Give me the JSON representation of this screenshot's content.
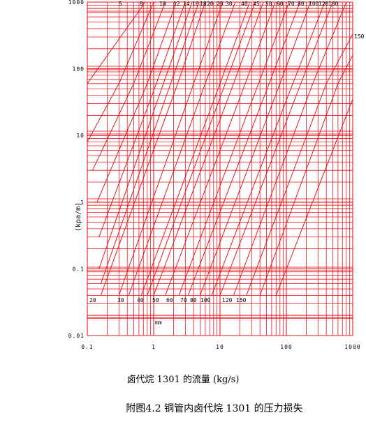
{
  "chart_data": {
    "type": "line",
    "xscale": "log",
    "yscale": "log",
    "xlim": [
      0.1,
      1000
    ],
    "ylim": [
      0.01,
      1000
    ],
    "grid": true,
    "ylabel": "(kpa/m)",
    "xlabel": "卤代烷 1301 的流量 (kg/s)",
    "caption": "附图4.2  铜管内卤代烷 1301 的压力损失",
    "unit_label": "mm",
    "x_ticks": [
      "0.1",
      "1",
      "10",
      "100",
      "1000"
    ],
    "y_ticks": [
      "1000",
      "100",
      "10",
      "1",
      "0.1",
      "0.01"
    ],
    "diameter_labels_top": [
      "5",
      "8",
      "10",
      "12",
      "14",
      "16",
      "18",
      "20",
      "25",
      "30",
      "40",
      "45",
      "50",
      "60",
      "70",
      "80",
      "100",
      "120",
      "130",
      "150"
    ],
    "diameter_labels_bottom": [
      "20",
      "30",
      "40",
      "50",
      "60",
      "70",
      "80",
      "100",
      "120",
      "150"
    ],
    "line_color": "#e8161d",
    "series": [
      {
        "d": 5,
        "points": [
          [
            0.1,
            60
          ],
          [
            0.75,
            1000
          ]
        ]
      },
      {
        "d": 8,
        "points": [
          [
            0.1,
            8
          ],
          [
            0.3,
            60
          ],
          [
            1.0,
            1000
          ]
        ]
      },
      {
        "d": 10,
        "points": [
          [
            0.12,
            3
          ],
          [
            0.5,
            60
          ],
          [
            1.5,
            1000
          ]
        ]
      },
      {
        "d": 12,
        "points": [
          [
            0.14,
            1
          ],
          [
            0.8,
            60
          ],
          [
            2.2,
            1000
          ]
        ]
      },
      {
        "d": 14,
        "points": [
          [
            0.15,
            0.3
          ],
          [
            1.1,
            60
          ],
          [
            3.0,
            1000
          ]
        ]
      },
      {
        "d": 16,
        "points": [
          [
            0.15,
            0.1
          ],
          [
            1.4,
            60
          ],
          [
            3.8,
            1000
          ]
        ]
      },
      {
        "d": 18,
        "points": [
          [
            0.16,
            0.06
          ],
          [
            1.8,
            60
          ],
          [
            4.8,
            1000
          ]
        ]
      },
      {
        "d": 20,
        "points": [
          [
            0.16,
            0.04
          ],
          [
            2.3,
            60
          ],
          [
            6.0,
            1000
          ]
        ]
      },
      {
        "d": 25,
        "points": [
          [
            0.3,
            0.04
          ],
          [
            4,
            60
          ],
          [
            11,
            1000
          ]
        ]
      },
      {
        "d": 30,
        "points": [
          [
            0.42,
            0.04
          ],
          [
            6,
            60
          ],
          [
            17,
            1000
          ]
        ]
      },
      {
        "d": 40,
        "points": [
          [
            0.65,
            0.04
          ],
          [
            10,
            60
          ],
          [
            28,
            1000
          ]
        ]
      },
      {
        "d": 45,
        "points": [
          [
            0.8,
            0.04
          ],
          [
            12,
            60
          ],
          [
            34,
            1000
          ]
        ]
      },
      {
        "d": 50,
        "points": [
          [
            1.0,
            0.04
          ],
          [
            16,
            60
          ],
          [
            45,
            1000
          ]
        ]
      },
      {
        "d": 60,
        "points": [
          [
            1.5,
            0.04
          ],
          [
            24,
            60
          ],
          [
            68,
            1000
          ]
        ]
      },
      {
        "d": 70,
        "points": [
          [
            2.4,
            0.04
          ],
          [
            38,
            60
          ],
          [
            110,
            1000
          ]
        ]
      },
      {
        "d": 80,
        "points": [
          [
            3.3,
            0.04
          ],
          [
            55,
            60
          ],
          [
            160,
            1000
          ]
        ]
      },
      {
        "d": 100,
        "points": [
          [
            5,
            0.04
          ],
          [
            80,
            60
          ],
          [
            230,
            1000
          ]
        ]
      },
      {
        "d": 120,
        "points": [
          [
            7.5,
            0.04
          ],
          [
            125,
            60
          ],
          [
            380,
            1000
          ]
        ]
      },
      {
        "d": 130,
        "points": [
          [
            10,
            0.04
          ],
          [
            165,
            60
          ],
          [
            500,
            1000
          ]
        ]
      },
      {
        "d": 150,
        "points": [
          [
            16,
            0.04
          ],
          [
            250,
            60
          ],
          [
            800,
            1000
          ]
        ]
      },
      {
        "d": 180,
        "points": [
          [
            25,
            0.04
          ],
          [
            400,
            60
          ],
          [
            1000,
            330
          ]
        ]
      },
      {
        "d": 200,
        "points": [
          [
            40,
            0.04
          ],
          [
            600,
            60
          ],
          [
            1000,
            160
          ]
        ]
      },
      {
        "d": 220,
        "points": [
          [
            70,
            0.04
          ],
          [
            1000,
            35
          ]
        ]
      }
    ]
  }
}
